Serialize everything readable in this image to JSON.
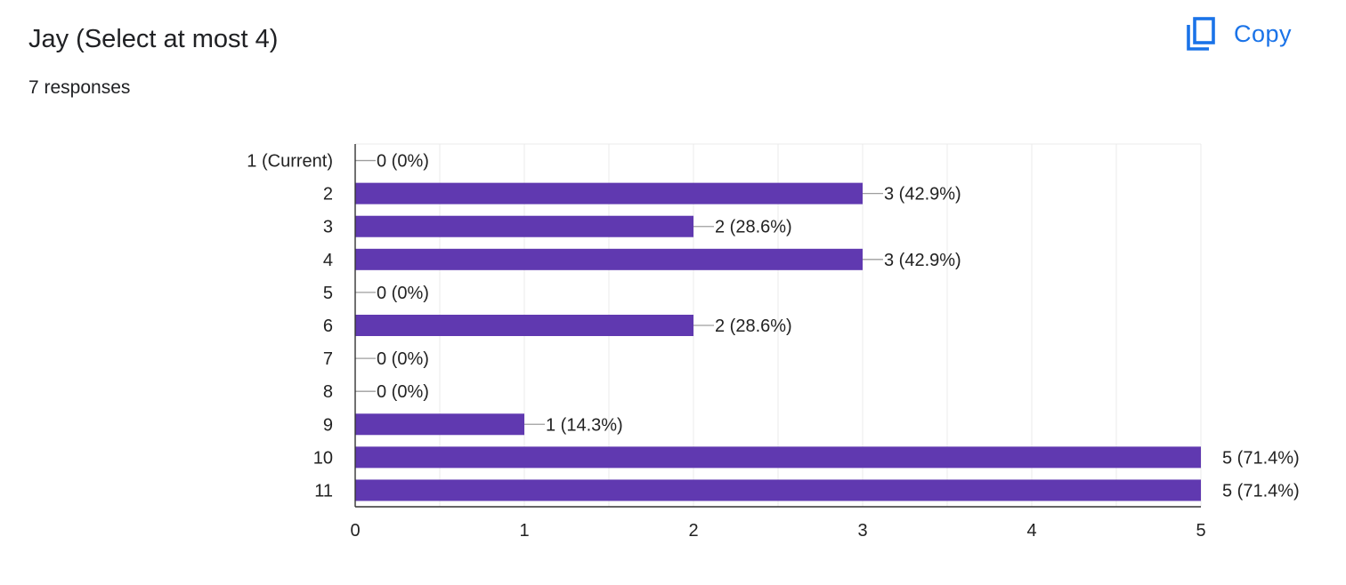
{
  "question": {
    "title": "Jay (Select at most 4)",
    "responses_label": "7 responses"
  },
  "toolbar": {
    "copy_label": "Copy",
    "copy_icon": "copy-icon"
  },
  "colors": {
    "bar": "#6039b0",
    "accent": "#1a73e8"
  },
  "chart_data": {
    "type": "bar",
    "orientation": "horizontal",
    "categories": [
      "1 (Current)",
      "2",
      "3",
      "4",
      "5",
      "6",
      "7",
      "8",
      "9",
      "10",
      "11"
    ],
    "values": [
      0,
      3,
      2,
      3,
      0,
      2,
      0,
      0,
      1,
      5,
      5
    ],
    "data_labels": [
      "0 (0%)",
      "3 (42.9%)",
      "2 (28.6%)",
      "3 (42.9%)",
      "0 (0%)",
      "2 (28.6%)",
      "0 (0%)",
      "0 (0%)",
      "1 (14.3%)",
      "5 (71.4%)",
      "5 (71.4%)"
    ],
    "xlim": [
      0,
      5
    ],
    "x_ticks": [
      "0",
      "1",
      "2",
      "3",
      "4",
      "5"
    ],
    "grid": true,
    "legend": false
  }
}
